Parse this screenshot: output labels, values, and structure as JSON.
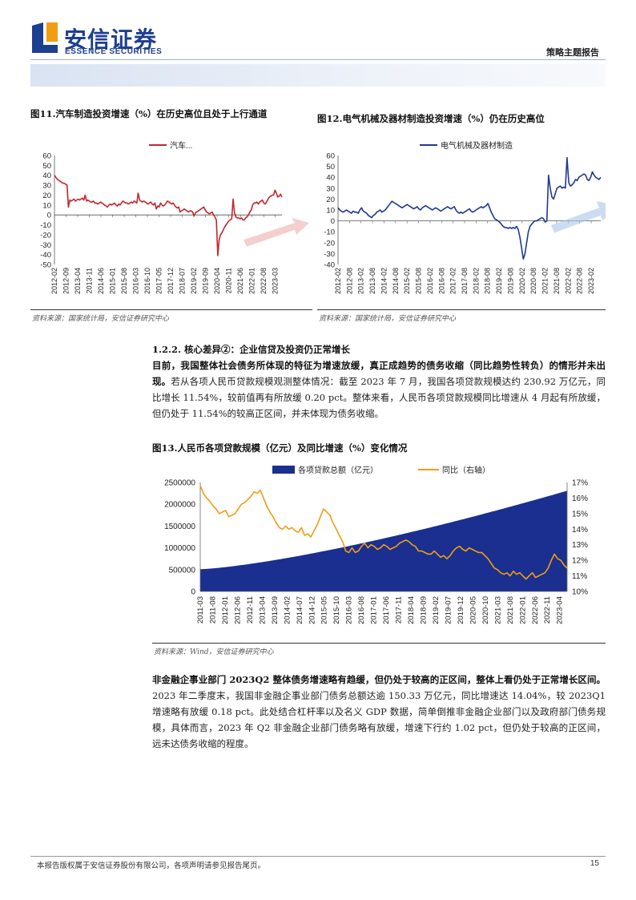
{
  "header": {
    "logo_cn": "安信证券",
    "logo_en": "ESSENCE SECURITIES",
    "doc_type": "策略主题报告"
  },
  "figures": {
    "fig11": {
      "title": "图11.汽车制造投资增速（%）在历史高位且处于上行通道",
      "source": "资料来源：国家统计局，安信证券研究中心"
    },
    "fig12": {
      "title": "图12.电气机械及器材制造投资增速（%）仍在历史高位",
      "source": "资料来源：国家统计局，安信证券研究中心"
    },
    "fig13": {
      "title": "图13.人民币各项贷款规模（亿元）及同比增速（%）变化情况",
      "source": "资料来源：Wind，安信证券研究中心"
    }
  },
  "section": {
    "heading": "1.2.2. 核心差异②：企业信贷及投资仍正常增长",
    "para1_bold": "目前，我国整体社会债务所体现的特征为增速放缓，真正成趋势的债务收缩（同比趋势性转负）的情形并未出现。",
    "para1_rest": "若从各项人民币贷款规模观测整体情况：截至 2023 年 7 月，我国各项贷款规模达约 230.92 万亿元，同比增长 11.54%，较前值再有所放缓 0.20 pct。整体来看，人民币各项贷款规模同比增速从 4 月起有所放缓，但仍处于 11.54%的较高正区间，并未体现为债务收缩。",
    "para2_bold": "非金融企事业部门 2023Q2 整体债务增速略有趋缓，但仍处于较高的正区间，整体上看仍处于正常增长区间。",
    "para2_rest": "2023 年二季度末，我国非金融企事业部门债务总额达逾 150.33 万亿元，同比增速达 14.04%，较 2023Q1 增速略有放缓 0.18 pct。此处结合杠杆率以及名义 GDP 数据，简单倒推非金融企业部门以及政府部门债务规模，具体而言，2023 年 Q2 非金融企业部门债务略有放缓，增速下行约 1.02 pct，但仍处于较高的正区间，远未达债务收缩的程度。"
  },
  "footer": {
    "text": "本报告版权属于安信证券股份有限公司，各项声明请参见报告尾页。",
    "page": "15"
  },
  "chart_data": [
    {
      "id": "fig11",
      "type": "line",
      "legend": [
        "汽车..."
      ],
      "legend_position": "top",
      "color": "#c0272d",
      "ylim": [
        -50,
        60
      ],
      "yticks": [
        60,
        50,
        40,
        30,
        20,
        10,
        0,
        -10,
        -20,
        -30,
        -40,
        -50
      ],
      "xticks": [
        "2012-02",
        "2012-09",
        "2013-04",
        "2013-11",
        "2014-06",
        "2015-01",
        "2015-08",
        "2016-03",
        "2016-10",
        "2017-05",
        "2017-12",
        "2018-07",
        "2019-02",
        "2019-09",
        "2020-04",
        "2020-11",
        "2021-06",
        "2022-01",
        "2022-08",
        "2023-03"
      ],
      "x_start": "2012-02",
      "x_end": "2023-07",
      "values": [
        40,
        38,
        36,
        35,
        34,
        33,
        32,
        32,
        31,
        30,
        8,
        15,
        14,
        15,
        16,
        14,
        15,
        16,
        15,
        16,
        17,
        15,
        20,
        14,
        15,
        14,
        13,
        13,
        14,
        12,
        12,
        11,
        12,
        13,
        12,
        11,
        10,
        9,
        8,
        10,
        11,
        10,
        11,
        12,
        10,
        9,
        11,
        10,
        12,
        14,
        13,
        12,
        12,
        11,
        12,
        13,
        12,
        14,
        13,
        12,
        22,
        15,
        14,
        13,
        14,
        13,
        12,
        11,
        12,
        13,
        11,
        10,
        12,
        6,
        9,
        8,
        12,
        10,
        9,
        10,
        12,
        14,
        13,
        12,
        11,
        12,
        10,
        8,
        7,
        8,
        3,
        4,
        5,
        6,
        5,
        4,
        3,
        4,
        4,
        3,
        -1,
        2,
        3,
        4,
        5,
        6,
        7,
        8,
        5,
        3,
        2,
        1,
        2,
        3,
        0,
        -2,
        -5,
        -41,
        -25,
        -20,
        -18,
        -15,
        -12,
        -10,
        -8,
        -6,
        -5,
        -4,
        16,
        2,
        -2,
        -3,
        -3,
        -4,
        -3,
        -5,
        -5,
        -3,
        -2,
        0,
        3,
        5,
        10,
        12,
        12,
        13,
        11,
        13,
        14,
        15,
        12,
        11,
        13,
        16,
        18,
        19,
        20,
        20,
        25,
        22,
        18,
        19,
        21,
        18
      ],
      "annotation": "up-arrow"
    },
    {
      "id": "fig12",
      "type": "line",
      "legend": [
        "电气机械及器材制造"
      ],
      "legend_position": "top",
      "color": "#1f3a93",
      "ylim": [
        -40,
        60
      ],
      "yticks": [
        60,
        50,
        40,
        30,
        20,
        10,
        0,
        -10,
        -20,
        -30,
        -40
      ],
      "xticks": [
        "2012-02",
        "2012-08",
        "2013-02",
        "2013-08",
        "2014-02",
        "2014-08",
        "2015-02",
        "2015-08",
        "2016-02",
        "2016-08",
        "2017-02",
        "2017-08",
        "2018-02",
        "2018-08",
        "2019-02",
        "2019-08",
        "2020-02",
        "2020-08",
        "2021-02",
        "2021-08",
        "2022-02",
        "2022-08",
        "2023-02"
      ],
      "x_start": "2012-02",
      "x_end": "2023-07",
      "values": [
        12,
        10,
        9,
        8,
        9,
        10,
        9,
        8,
        7,
        9,
        8,
        8,
        7,
        10,
        12,
        9,
        8,
        7,
        5,
        4,
        3,
        5,
        6,
        8,
        9,
        10,
        8,
        9,
        10,
        12,
        14,
        16,
        18,
        17,
        16,
        15,
        14,
        13,
        12,
        13,
        14,
        15,
        14,
        13,
        12,
        11,
        12,
        13,
        11,
        10,
        12,
        13,
        14,
        13,
        12,
        11,
        10,
        11,
        12,
        11,
        10,
        9,
        10,
        11,
        12,
        13,
        12,
        11,
        12,
        13,
        10,
        8,
        7,
        8,
        7,
        8,
        9,
        10,
        11,
        9,
        8,
        9,
        10,
        11,
        12,
        13,
        12,
        13,
        14,
        16,
        12,
        8,
        5,
        2,
        1,
        0,
        -1,
        -3,
        -5,
        -6,
        -6,
        -7,
        -6,
        -7,
        -6,
        -7,
        -5,
        -8,
        -15,
        -25,
        -35,
        -30,
        -20,
        -10,
        -5,
        -3,
        -1,
        0,
        0,
        1,
        2,
        3,
        2,
        -1,
        0,
        42,
        30,
        22,
        20,
        25,
        30,
        31,
        32,
        30,
        31,
        30,
        58,
        35,
        32,
        33,
        35,
        38,
        37,
        40,
        41,
        42,
        43,
        42,
        38,
        37,
        40,
        45,
        42,
        40,
        39,
        38,
        40
      ]
    },
    {
      "id": "fig13",
      "type": "bar+line",
      "series": [
        {
          "name": "各项贷款总额（亿元）",
          "kind": "area",
          "axis": "left",
          "color": "#1a2f8f",
          "start_value": 510000,
          "end_value": 2309200
        },
        {
          "name": "同比（右轴）",
          "kind": "line",
          "axis": "right",
          "color": "#f29c13",
          "values": [
            16.8,
            16.3,
            16.0,
            15.8,
            15.5,
            15.3,
            15.0,
            15.1,
            15.2,
            14.8,
            14.9,
            15.0,
            15.3,
            15.6,
            15.7,
            15.9,
            16.1,
            16.4,
            16.3,
            16.5,
            16.0,
            15.5,
            15.1,
            14.8,
            14.4,
            14.1,
            14.0,
            14.2,
            14.0,
            14.1,
            13.9,
            13.8,
            14.1,
            13.6,
            13.7,
            13.5,
            13.9,
            14.3,
            14.8,
            15.3,
            15.1,
            14.9,
            14.4,
            14.0,
            13.6,
            13.2,
            12.6,
            12.5,
            12.8,
            12.5,
            12.6,
            12.9,
            13.1,
            12.8,
            13.0,
            12.9,
            12.7,
            12.8,
            13.0,
            12.9,
            12.7,
            12.8,
            12.9,
            13.1,
            13.2,
            13.3,
            13.2,
            13.0,
            12.9,
            12.6,
            12.6,
            12.5,
            12.4,
            12.4,
            12.6,
            12.4,
            12.2,
            12.3,
            12.1,
            12.3,
            12.6,
            12.8,
            12.9,
            12.7,
            12.6,
            12.8,
            12.7,
            12.6,
            12.5,
            12.5,
            12.3,
            12.1,
            11.8,
            11.5,
            11.4,
            11.2,
            11.1,
            11.2,
            11.0,
            11.3,
            11.1,
            11.2,
            11.0,
            10.8,
            11.0,
            11.2,
            10.9,
            11.0,
            11.1,
            11.2,
            11.5,
            12.0,
            12.4,
            12.1,
            12.0,
            11.7,
            11.5
          ]
        }
      ],
      "left_ylim": [
        0,
        2500000
      ],
      "left_yticks": [
        2500000,
        2000000,
        1500000,
        1000000,
        500000,
        0
      ],
      "right_ylim": [
        10,
        17
      ],
      "right_yticks": [
        "17%",
        "16%",
        "15%",
        "14%",
        "13%",
        "12%",
        "11%",
        "10%"
      ],
      "xticks": [
        "2011-03",
        "2011-08",
        "2012-01",
        "2012-06",
        "2012-11",
        "2013-04",
        "2013-09",
        "2014-02",
        "2014-07",
        "2014-12",
        "2015-05",
        "2015-10",
        "2016-03",
        "2016-08",
        "2017-01",
        "2017-06",
        "2017-11",
        "2018-04",
        "2018-09",
        "2019-02",
        "2019-07",
        "2019-12",
        "2020-05",
        "2020-10",
        "2021-03",
        "2021-08",
        "2022-01",
        "2022-06",
        "2022-11",
        "2023-04"
      ],
      "legend_position": "top"
    }
  ]
}
